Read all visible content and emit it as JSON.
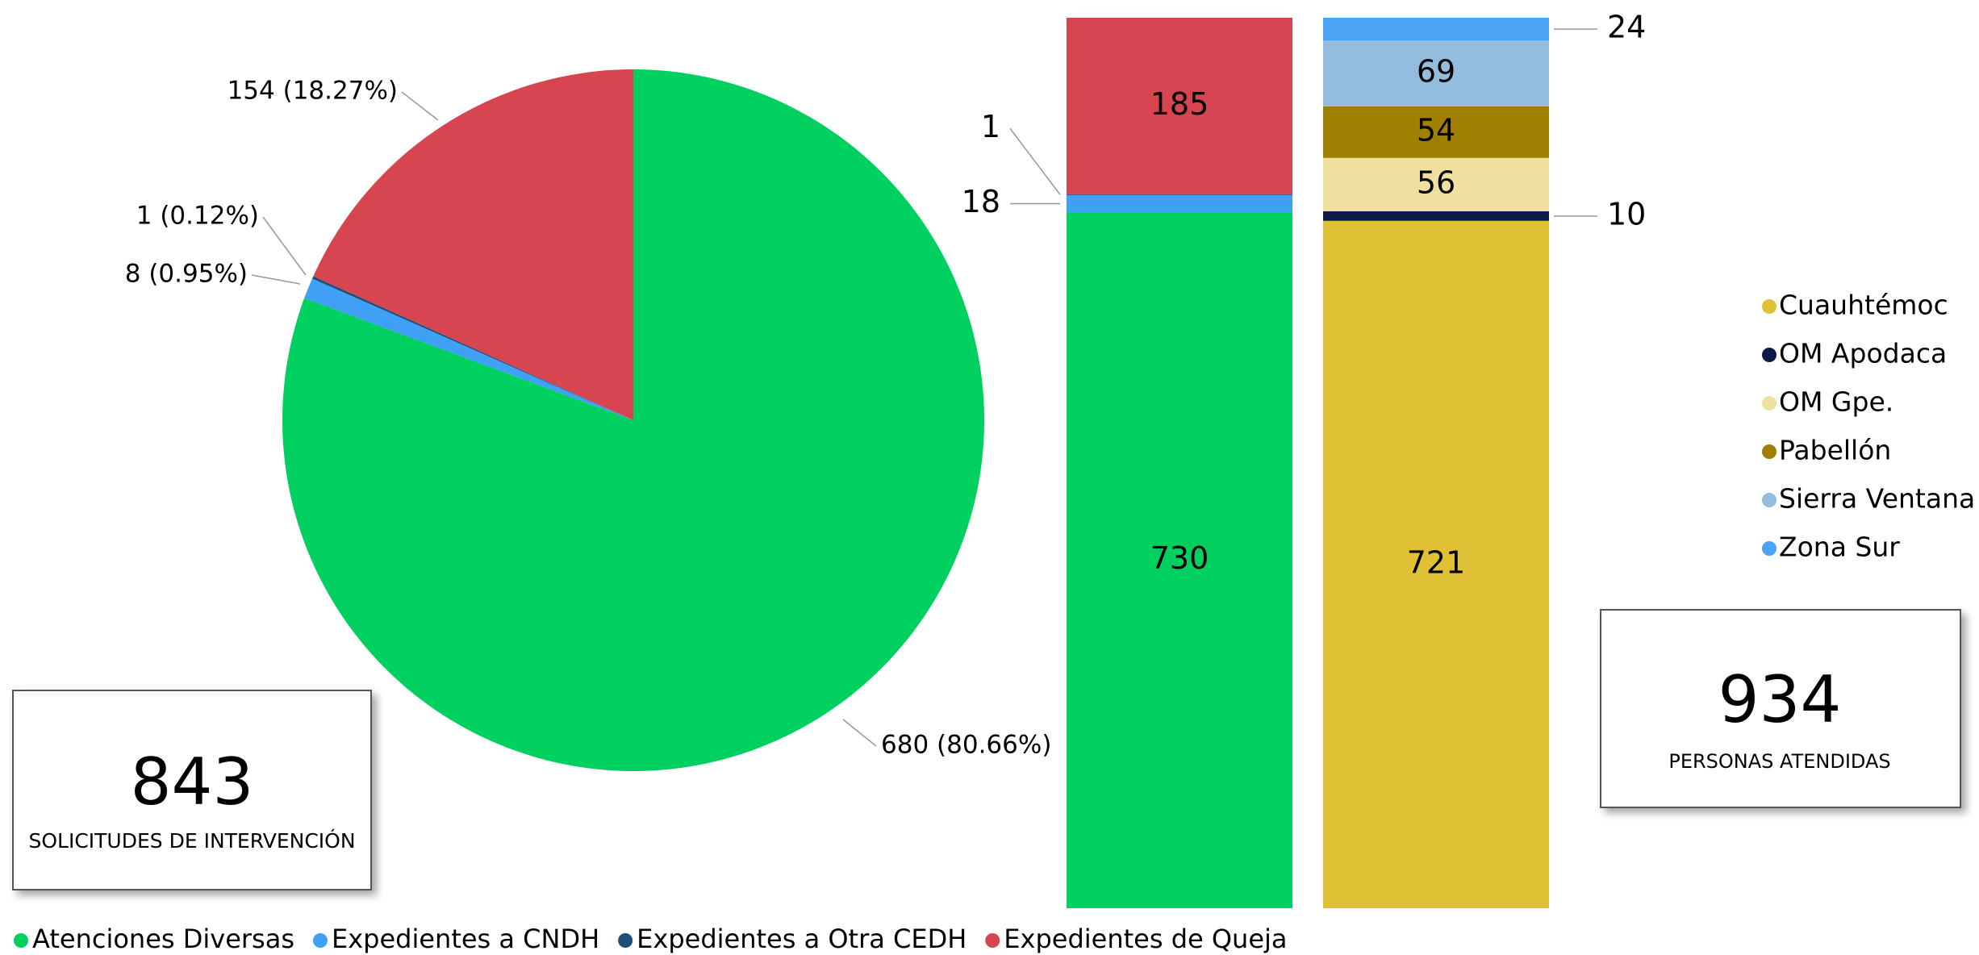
{
  "chart_data": [
    {
      "type": "pie",
      "categories": [
        "Atenciones Diversas",
        "Expedientes a CNDH",
        "Expedientes a Otra CEDH",
        "Expedientes de Queja"
      ],
      "values": [
        680,
        8,
        1,
        154
      ],
      "value_labels": [
        "680 (80.66%)",
        "8 (0.95%)",
        "1 (0.12%)",
        "154 (18.27%)"
      ],
      "colors": [
        "#00d05f",
        "#3fa0f5",
        "#1f4e79",
        "#d64550"
      ],
      "total": 843,
      "total_label": "SOLICITUDES DE INTERVENCIÓN"
    },
    {
      "type": "stacked_bar",
      "values": [
        730,
        18,
        1,
        185
      ],
      "colors": [
        "#00d05f",
        "#3fa0f5",
        "#1f4e79",
        "#d64550"
      ]
    },
    {
      "type": "stacked_bar",
      "series": [
        {
          "name": "Cuauhtémoc",
          "color": "#e0c035",
          "values": [
            721
          ]
        },
        {
          "name": "OM Apodaca",
          "color": "#0e1a4a",
          "values": [
            10
          ]
        },
        {
          "name": "OM Gpe.",
          "color": "#f0e0a0",
          "values": [
            56
          ]
        },
        {
          "name": "Pabellón",
          "color": "#a08000",
          "values": [
            54
          ]
        },
        {
          "name": "Sierra Ventana",
          "color": "#93bcdd",
          "values": [
            69
          ]
        },
        {
          "name": "Zona Sur",
          "color": "#4aa3f5",
          "values": [
            24
          ]
        }
      ],
      "total": 934,
      "total_label": "PERSONAS ATENDIDAS"
    }
  ]
}
